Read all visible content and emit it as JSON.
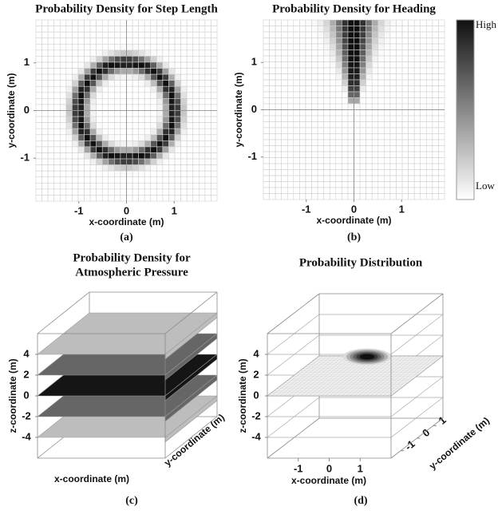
{
  "chart_data": [
    {
      "type": "heatmap",
      "title": "Probability Density for Step Length",
      "x_label": "x-coordinate (m)",
      "y_label": "y-coordinate (m)",
      "xlim": [
        -1.9,
        1.9
      ],
      "ylim": [
        -1.9,
        1.9
      ],
      "xticks": [
        -1,
        0,
        1
      ],
      "yticks": [
        -1,
        0,
        1
      ],
      "caption": "(a)"
    },
    {
      "type": "heatmap",
      "title": "Probability Density for Heading",
      "x_label": "x-coordinate (m)",
      "y_label": "y-coordinate (m)",
      "xlim": [
        -1.9,
        1.9
      ],
      "ylim": [
        -1.9,
        1.9
      ],
      "xticks": [
        -1,
        0,
        1
      ],
      "yticks": [
        -1,
        0,
        1
      ],
      "caption": "(b)",
      "colorbar_labels": [
        "High",
        "Low"
      ]
    },
    {
      "type": "layers3d",
      "title": [
        "Probability Density for",
        "Atmospheric Pressure"
      ],
      "x_label": "x-coordinate (m)",
      "y_label": "y-coordinate (m)",
      "z_label": "z-coordinate (m)",
      "zlim": [
        -6,
        6
      ],
      "zticks": [
        4,
        2,
        0,
        -2,
        -4
      ],
      "caption": "(c)"
    },
    {
      "type": "surface3d",
      "title": "Probability Distribution",
      "x_label": "x-coordinate (m)",
      "y_label": "y-coordinate (m)",
      "z_label": "z-coordinate (m)",
      "xlim": [
        -2,
        2
      ],
      "ylim": [
        -1.6,
        1.6
      ],
      "zlim": [
        -6,
        6
      ],
      "xticks": [
        -1,
        0,
        1
      ],
      "yticks": [
        -1,
        0,
        1
      ],
      "zticks": [
        4,
        2,
        0,
        -2,
        -4
      ],
      "caption": "(d)"
    }
  ]
}
